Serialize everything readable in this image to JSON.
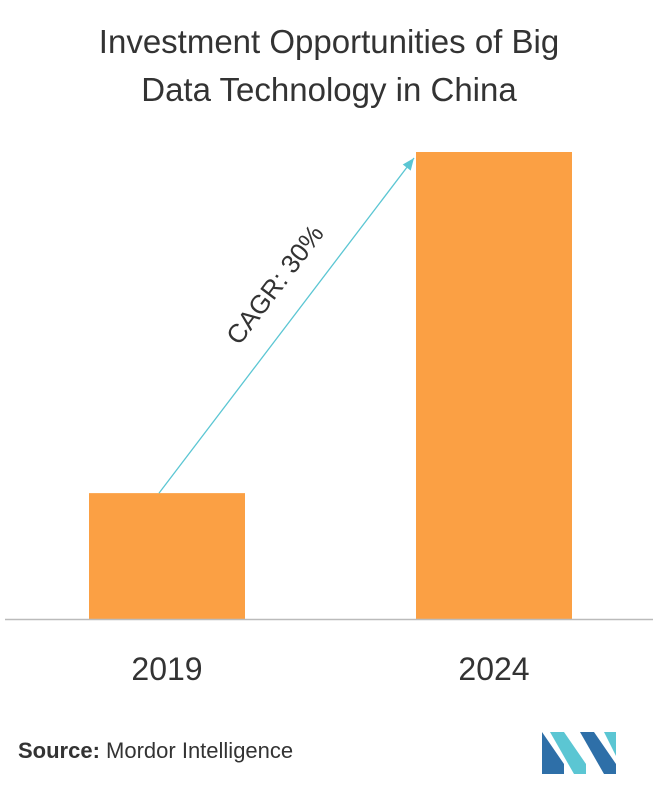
{
  "chart_data": {
    "type": "bar",
    "title_lines": [
      "Investment Opportunities of Big",
      "Data Technology in China"
    ],
    "categories": [
      "2019",
      "2024"
    ],
    "values": [
      1,
      3.71
    ],
    "ylim": [
      0,
      3.71
    ],
    "xlabel": "",
    "ylabel": "",
    "grid": false,
    "legend": "none",
    "annotation": {
      "text": "CAGR: 30%",
      "type": "arrow",
      "from": "2019",
      "to": "2024"
    },
    "colors": {
      "bar": "#FBA044",
      "arrow": "#5BC6D3",
      "axis": "#BBBBBB"
    }
  },
  "source": {
    "label": "Source:",
    "text": " Mordor Intelligence"
  },
  "logo": {
    "name": "mordor-intelligence-logo",
    "colors": [
      "#2E6FA8",
      "#5BC6D3"
    ]
  }
}
